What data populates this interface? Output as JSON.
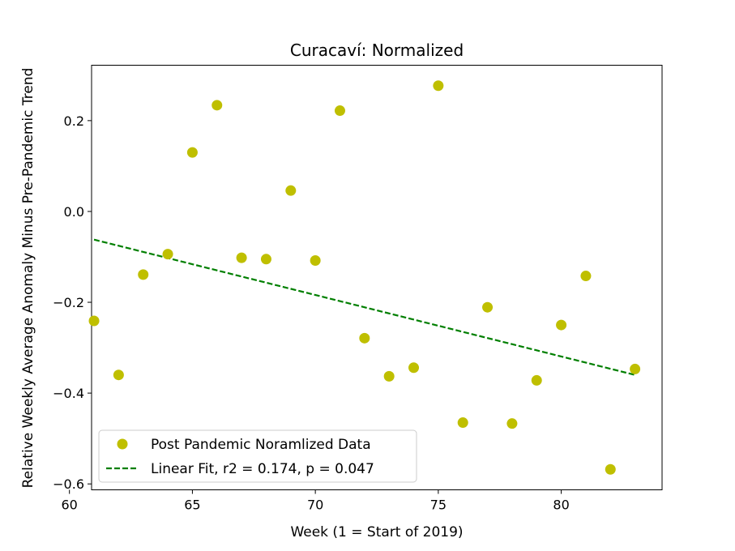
{
  "chart_data": {
    "type": "scatter",
    "title": "Curacaví: Normalized",
    "xlabel": "Week (1 = Start of 2019)",
    "ylabel": "Relative Weekly Average Anomaly Minus Pre-Pandemic Trend",
    "xlim": [
      60.9,
      84.1
    ],
    "ylim": [
      -0.613,
      0.322
    ],
    "xticks": [
      60,
      65,
      70,
      75,
      80
    ],
    "yticks": [
      -0.6,
      -0.4,
      -0.2,
      0.0,
      0.2
    ],
    "xtick_labels": [
      "60",
      "65",
      "70",
      "75",
      "80"
    ],
    "ytick_labels": [
      "−0.6",
      "−0.4",
      "−0.2",
      "0.0",
      "0.2"
    ],
    "grid": false,
    "legend_position": "lower-left",
    "series": [
      {
        "name": "Post Pandemic Noramlized Data",
        "kind": "points",
        "color": "#bfbf00",
        "x": [
          61,
          62,
          63,
          64,
          65,
          66,
          67,
          68,
          69,
          70,
          71,
          72,
          73,
          74,
          75,
          76,
          77,
          78,
          79,
          80,
          81,
          82,
          83
        ],
        "y": [
          -0.241,
          -0.36,
          -0.139,
          -0.094,
          0.13,
          0.234,
          -0.102,
          -0.105,
          0.046,
          -0.108,
          0.222,
          -0.279,
          -0.363,
          -0.344,
          0.277,
          -0.465,
          -0.211,
          -0.467,
          -0.372,
          -0.25,
          -0.142,
          -0.568,
          -0.347
        ]
      },
      {
        "name": "Linear Fit, r2 = 0.174, p = 0.047",
        "kind": "dashed-line",
        "color": "#007f00",
        "x": [
          61,
          83
        ],
        "y": [
          -0.062,
          -0.36
        ]
      }
    ]
  }
}
